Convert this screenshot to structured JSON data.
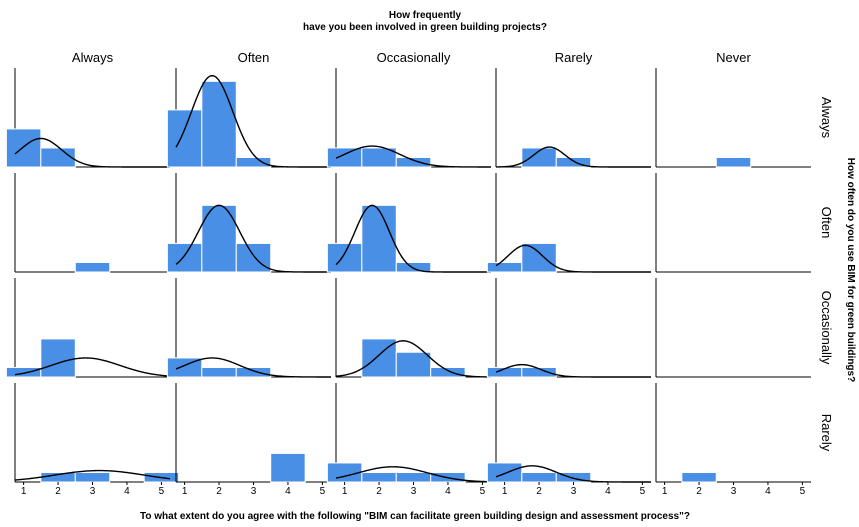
{
  "chart_data": {
    "type": "bar",
    "title_line1": "How frequently",
    "title_line2": "have you been involved in green building projects?",
    "xlabel": "To what extent do you agree with the following \"BIM can facilitate green building design and assessment process\"?",
    "right_label": "How often do you use BIM for green buildings?",
    "column_labels": [
      "Always",
      "Often",
      "Occasionally",
      "Rarely",
      "Never"
    ],
    "row_labels": [
      "Always",
      "Often",
      "Occasionally",
      "Rarely"
    ],
    "x_ticks": [
      "1",
      "2",
      "3",
      "4",
      "5"
    ],
    "xlim": [
      0.75,
      5.25
    ],
    "ylim": [
      0,
      5.2
    ],
    "bar_color": "#4a8fe6",
    "curve_color": "#000000",
    "panels": [
      [
        {
          "values": [
            2,
            1,
            0,
            0,
            0
          ],
          "curve": {
            "mean": 1.5,
            "sd": 0.6,
            "peak": 1.5
          }
        },
        {
          "values": [
            3,
            4.5,
            0.5,
            0,
            0
          ],
          "curve": {
            "mean": 1.8,
            "sd": 0.6,
            "peak": 4.8
          }
        },
        {
          "values": [
            1,
            1,
            0.5,
            0,
            0
          ],
          "curve": {
            "mean": 1.8,
            "sd": 0.8,
            "peak": 1.1
          }
        },
        {
          "values": [
            0,
            1,
            0.5,
            0,
            0
          ],
          "curve": {
            "mean": 2.3,
            "sd": 0.45,
            "peak": 1.05
          }
        },
        {
          "values": [
            0,
            0,
            0.5,
            0,
            0
          ],
          "curve": null
        }
      ],
      [
        {
          "values": [
            0,
            0,
            0.5,
            0,
            0
          ],
          "curve": null
        },
        {
          "values": [
            1.5,
            3.5,
            1.5,
            0,
            0
          ],
          "curve": {
            "mean": 2.0,
            "sd": 0.6,
            "peak": 3.5
          }
        },
        {
          "values": [
            1.5,
            3.5,
            0.5,
            0,
            0
          ],
          "curve": {
            "mean": 1.8,
            "sd": 0.5,
            "peak": 3.5
          }
        },
        {
          "values": [
            0.5,
            1.5,
            0,
            0,
            0
          ],
          "curve": {
            "mean": 1.6,
            "sd": 0.5,
            "peak": 1.4
          }
        },
        {
          "values": [
            0,
            0,
            0,
            0,
            0
          ],
          "curve": null
        }
      ],
      [
        {
          "values": [
            0.5,
            2,
            0,
            0,
            0
          ],
          "curve": {
            "mean": 2.8,
            "sd": 1.0,
            "peak": 1.0
          }
        },
        {
          "values": [
            1,
            0.5,
            0.5,
            0,
            0
          ],
          "curve": {
            "mean": 1.8,
            "sd": 0.8,
            "peak": 1.0
          }
        },
        {
          "values": [
            0,
            2,
            1.3,
            0.5,
            0
          ],
          "curve": {
            "mean": 2.7,
            "sd": 0.7,
            "peak": 1.9
          }
        },
        {
          "values": [
            0.5,
            0.5,
            0,
            0,
            0
          ],
          "curve": {
            "mean": 1.5,
            "sd": 0.55,
            "peak": 0.65
          }
        },
        {
          "values": [
            0,
            0,
            0,
            0,
            0
          ],
          "curve": null
        }
      ],
      [
        {
          "values": [
            0,
            0.5,
            0.5,
            0,
            0.5
          ],
          "curve": {
            "mean": 3.2,
            "sd": 1.3,
            "peak": 0.6
          }
        },
        {
          "values": [
            0,
            0,
            0,
            1.5,
            0
          ],
          "curve": null
        },
        {
          "values": [
            1,
            0.5,
            0.5,
            0.5,
            0
          ],
          "curve": {
            "mean": 2.4,
            "sd": 1.0,
            "peak": 0.8
          }
        },
        {
          "values": [
            1,
            0.5,
            0.5,
            0,
            0
          ],
          "curve": {
            "mean": 1.8,
            "sd": 0.7,
            "peak": 0.85
          }
        },
        {
          "values": [
            0,
            0.5,
            0,
            0,
            0
          ],
          "curve": null
        }
      ]
    ]
  }
}
